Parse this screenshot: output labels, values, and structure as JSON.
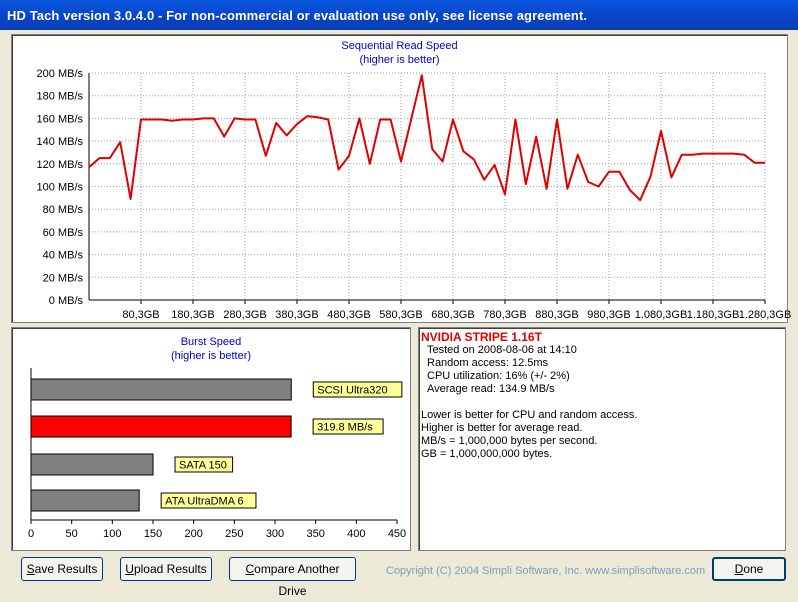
{
  "window": {
    "title": "HD Tach version 3.0.4.0  - For non-commercial or evaluation use only, see license agreement."
  },
  "seq_chart": {
    "title": "Sequential Read Speed",
    "subtitle": "(higher is better)"
  },
  "burst_chart": {
    "title": "Burst Speed",
    "subtitle": "(higher is better)"
  },
  "chart_data": [
    {
      "type": "line",
      "title": "Sequential Read Speed",
      "subtitle": "(higher is better)",
      "ylim": [
        0,
        200
      ],
      "y_ticks": [
        "0 MB/s",
        "20 MB/s",
        "40 MB/s",
        "60 MB/s",
        "80 MB/s",
        "100 MB/s",
        "120 MB/s",
        "140 MB/s",
        "160 MB/s",
        "180 MB/s",
        "200 MB/s"
      ],
      "x_ticks": [
        "80,3GB",
        "180,3GB",
        "280,3GB",
        "380,3GB",
        "480,3GB",
        "580,3GB",
        "680,3GB",
        "780,3GB",
        "880,3GB",
        "980,3GB",
        "1.080,3GB",
        "1.180,3GB",
        "1.280,3GB"
      ],
      "xlim": [
        0,
        1300
      ],
      "grid": true,
      "color": "#e00000",
      "x": [
        0,
        20,
        40,
        60,
        80,
        100,
        120,
        140,
        160,
        180,
        200,
        220,
        240,
        260,
        280,
        300,
        320,
        340,
        360,
        380,
        400,
        420,
        440,
        460,
        480,
        500,
        520,
        540,
        560,
        580,
        600,
        620,
        640,
        660,
        680,
        700,
        720,
        740,
        760,
        780,
        800,
        820,
        840,
        860,
        880,
        900,
        920,
        940,
        960,
        980,
        1000,
        1020,
        1040,
        1060,
        1080,
        1100,
        1120,
        1140,
        1160,
        1180,
        1200,
        1220,
        1240,
        1260,
        1280,
        1300
      ],
      "values": [
        117,
        125,
        125,
        139,
        89,
        159,
        159,
        159,
        158,
        159,
        159,
        160,
        160,
        144,
        160,
        159,
        159,
        127,
        156,
        145,
        155,
        162,
        161,
        159,
        115,
        127,
        160,
        120,
        159,
        159,
        122,
        160,
        198,
        133,
        122,
        159,
        131,
        124,
        106,
        119,
        93,
        159,
        102,
        144,
        98,
        159,
        98,
        128,
        104,
        100,
        113,
        113,
        97,
        88,
        109,
        149,
        108,
        128,
        128,
        129,
        129,
        129,
        129,
        128,
        121,
        121
      ]
    },
    {
      "type": "bar",
      "title": "Burst Speed",
      "subtitle": "(higher is better)",
      "orientation": "horizontal",
      "categories": [
        "SCSI Ultra320",
        "319.8 MB/s",
        "SATA 150",
        "ATA UltraDMA 6"
      ],
      "values": [
        320,
        319.8,
        150,
        133
      ],
      "colors": [
        "#808080",
        "#ff0000",
        "#808080",
        "#808080"
      ],
      "xlim": [
        0,
        450
      ],
      "x_ticks": [
        "0",
        "50",
        "100",
        "150",
        "200",
        "250",
        "300",
        "350",
        "400",
        "450"
      ]
    }
  ],
  "info": {
    "drive_name": "NVIDIA STRIPE 1.16T",
    "lines": [
      "Tested on 2008-08-06 at 14:10",
      "Random access: 12.5ms",
      "CPU utilization: 16% (+/- 2%)",
      "Average read: 134.9 MB/s"
    ],
    "notes": [
      "Lower is better for CPU and random access.",
      "Higher is better for average read.",
      "MB/s = 1,000,000 bytes per second.",
      "GB = 1,000,000,000 bytes."
    ]
  },
  "buttons": {
    "save": {
      "hotkey": "S",
      "rest": "ave Results"
    },
    "upload": {
      "hotkey": "U",
      "rest": "pload Results"
    },
    "compare": {
      "hotkey": "C",
      "rest": "ompare Another Drive"
    },
    "done": {
      "hotkey": "D",
      "rest": "one"
    }
  },
  "copyright": "Copyright (C) 2004 Simpli Software, Inc. www.simplisoftware.com"
}
